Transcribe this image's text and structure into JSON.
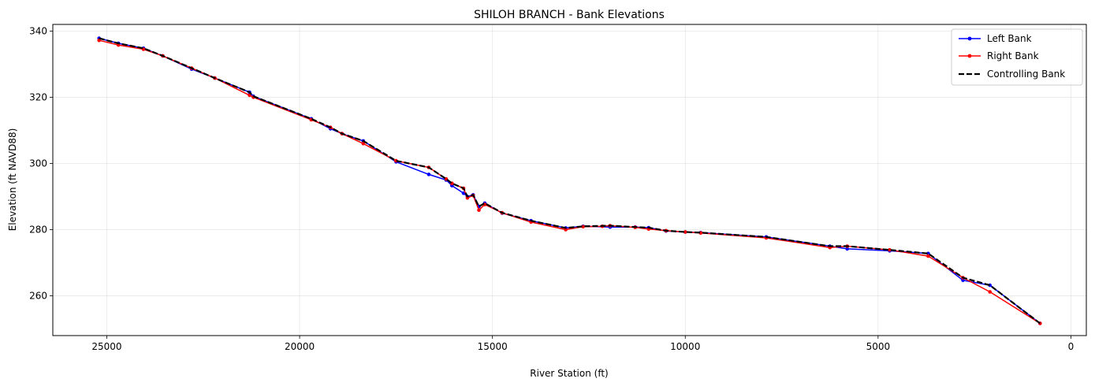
{
  "chart_data": {
    "type": "line",
    "title": "SHILOH BRANCH - Bank Elevations",
    "xlabel": "River Station (ft)",
    "ylabel": "Elevation (ft NAVD88)",
    "xlim": [
      26400,
      -400
    ],
    "ylim": [
      248,
      342
    ],
    "x_ticks": [
      25000,
      20000,
      15000,
      10000,
      5000,
      0
    ],
    "y_ticks": [
      260,
      280,
      300,
      320,
      340
    ],
    "x_tick_labels": [
      "25000",
      "20000",
      "15000",
      "10000",
      "5000",
      "0"
    ],
    "y_tick_labels": [
      "260",
      "280",
      "300",
      "320",
      "340"
    ],
    "grid": true,
    "legend_position": "top-right",
    "series": [
      {
        "name": "Left Bank",
        "color": "#0000ff",
        "style": "solid-marker",
        "x": [
          25200,
          24700,
          24050,
          23550,
          22800,
          22200,
          21300,
          21200,
          19700,
          19200,
          18900,
          18350,
          17500,
          16650,
          16200,
          16050,
          15750,
          15650,
          15500,
          15350,
          15200,
          14750,
          14000,
          13100,
          12650,
          11950,
          11300,
          10950,
          10500,
          10000,
          9600,
          7900,
          6250,
          5800,
          4700,
          3700,
          2800,
          2100,
          800
        ],
        "y": [
          337.8,
          336.3,
          334.8,
          332.5,
          328.5,
          325.8,
          321.5,
          320.3,
          313.5,
          310.5,
          309.0,
          306.8,
          300.5,
          296.7,
          295.0,
          293.3,
          291.0,
          290.0,
          290.5,
          287.0,
          288.0,
          285.0,
          282.7,
          280.5,
          281.0,
          280.8,
          280.8,
          280.6,
          279.6,
          279.3,
          279.1,
          277.8,
          275.0,
          274.2,
          273.6,
          272.8,
          264.7,
          263.2,
          251.7
        ]
      },
      {
        "name": "Right Bank",
        "color": "#ff0000",
        "style": "solid-marker",
        "x": [
          25200,
          24700,
          24050,
          23550,
          22800,
          22200,
          21300,
          21200,
          19700,
          19200,
          18900,
          18350,
          17500,
          16650,
          16200,
          16050,
          15750,
          15650,
          15500,
          15350,
          15200,
          14750,
          14000,
          13100,
          12650,
          12150,
          11950,
          11300,
          10950,
          10500,
          10000,
          9600,
          7900,
          6250,
          5800,
          4700,
          3700,
          2800,
          2100,
          800
        ],
        "y": [
          337.2,
          335.8,
          334.5,
          332.5,
          328.8,
          325.8,
          320.6,
          320.0,
          313.2,
          310.9,
          309.0,
          306.0,
          300.8,
          298.8,
          295.3,
          294.0,
          292.5,
          289.6,
          290.3,
          285.9,
          287.6,
          285.1,
          282.3,
          280.0,
          280.9,
          281.0,
          281.2,
          280.7,
          280.2,
          279.7,
          279.3,
          279.0,
          277.5,
          274.6,
          275.0,
          273.9,
          272.0,
          265.5,
          261.2,
          251.7
        ]
      },
      {
        "name": "Controlling Bank",
        "color": "#000000",
        "style": "dashed",
        "x": [
          25200,
          24700,
          24050,
          23550,
          22800,
          22200,
          21300,
          21200,
          19700,
          19200,
          18900,
          18350,
          17500,
          16650,
          16200,
          16050,
          15750,
          15650,
          15500,
          15350,
          15200,
          14750,
          14000,
          13100,
          12650,
          11950,
          11300,
          10950,
          10500,
          10000,
          9600,
          7900,
          6250,
          5800,
          4700,
          3700,
          2800,
          2100,
          800
        ],
        "y": [
          337.8,
          336.3,
          334.8,
          332.5,
          328.8,
          325.8,
          321.5,
          320.3,
          313.5,
          310.9,
          309.0,
          306.8,
          300.8,
          298.8,
          295.3,
          294.0,
          292.5,
          290.0,
          290.5,
          287.0,
          288.0,
          285.1,
          282.7,
          280.5,
          281.0,
          281.2,
          280.8,
          280.6,
          279.7,
          279.3,
          279.1,
          277.8,
          275.0,
          275.0,
          273.9,
          272.8,
          265.5,
          263.2,
          251.7
        ]
      }
    ]
  }
}
